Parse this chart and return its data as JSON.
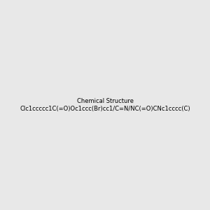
{
  "smiles": "Clc1ccccc1C(=O)Oc1ccc(Br)cc1/C=N/NC(=O)CNc1cccc(C)c1",
  "title": "",
  "background_color": "#e8e8e8",
  "bond_color": "#2d6e6e",
  "atom_colors": {
    "N": "#0000ff",
    "O": "#ff0000",
    "Cl": "#00aa00",
    "Br": "#cc6600"
  },
  "figsize": [
    3.0,
    3.0
  ],
  "dpi": 100
}
